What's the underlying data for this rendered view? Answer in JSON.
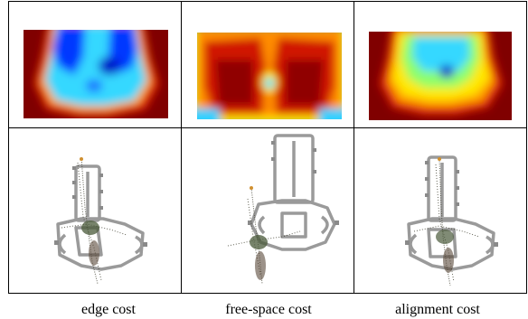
{
  "figure": {
    "captions": [
      "edge cost",
      "free-space cost",
      "alignment cost"
    ],
    "colors": {
      "jet_dark_red": "#800000",
      "jet_red": "#e31a10",
      "jet_orange": "#ff8a00",
      "jet_yellow": "#ffe600",
      "jet_cyan": "#24d4f0",
      "jet_blue": "#1b6cff",
      "jet_dark_blue": "#0010c8",
      "floorplan_gray": "#9a9a9a",
      "point_cloud": "#4a4a3a"
    }
  }
}
